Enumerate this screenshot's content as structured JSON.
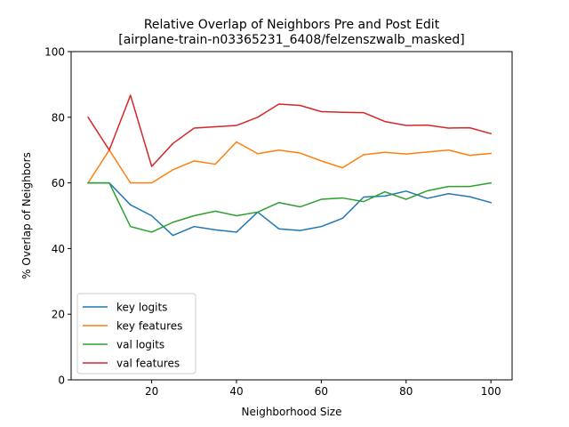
{
  "chart_data": {
    "type": "line",
    "title_line1": "Relative Overlap of Neighbors Pre and Post Edit",
    "title_line2": "[airplane-train-n03365231_6408/felzenszwalb_masked]",
    "xlabel": "Neighborhood Size",
    "ylabel": "% Overlap of Neighbors",
    "xlim": [
      1,
      105
    ],
    "ylim": [
      0,
      100
    ],
    "xticks": [
      20,
      40,
      60,
      80,
      100
    ],
    "yticks": [
      0,
      20,
      40,
      60,
      80,
      100
    ],
    "legend_position": "lower-left",
    "grid": false,
    "x": [
      5,
      10,
      15,
      20,
      25,
      30,
      35,
      40,
      45,
      50,
      55,
      60,
      65,
      70,
      75,
      80,
      85,
      90,
      95,
      100
    ],
    "series": [
      {
        "name": "key logits",
        "color": "#1f77b4",
        "values": [
          60.0,
          60.0,
          53.3,
          50.0,
          44.0,
          46.7,
          45.7,
          45.0,
          51.1,
          46.0,
          45.5,
          46.7,
          49.2,
          55.7,
          56.0,
          57.5,
          55.3,
          56.7,
          55.8,
          54.0
        ]
      },
      {
        "name": "key features",
        "color": "#ff7f0e",
        "values": [
          60.0,
          70.0,
          60.0,
          60.0,
          64.0,
          66.7,
          65.7,
          72.5,
          68.9,
          70.0,
          69.1,
          66.7,
          64.6,
          68.6,
          69.3,
          68.8,
          69.4,
          70.0,
          68.4,
          69.0
        ]
      },
      {
        "name": "val logits",
        "color": "#2ca02c",
        "values": [
          60.0,
          60.0,
          46.7,
          45.0,
          48.0,
          50.0,
          51.4,
          50.0,
          51.1,
          54.0,
          52.7,
          55.0,
          55.4,
          54.3,
          57.3,
          55.0,
          57.6,
          58.9,
          58.9,
          60.0
        ]
      },
      {
        "name": "val features",
        "color": "#d62728",
        "values": [
          80.0,
          70.0,
          86.7,
          65.0,
          72.0,
          76.7,
          77.1,
          77.5,
          80.0,
          84.0,
          83.6,
          81.7,
          81.5,
          81.4,
          78.7,
          77.5,
          77.6,
          76.7,
          76.8,
          75.0
        ]
      }
    ]
  }
}
